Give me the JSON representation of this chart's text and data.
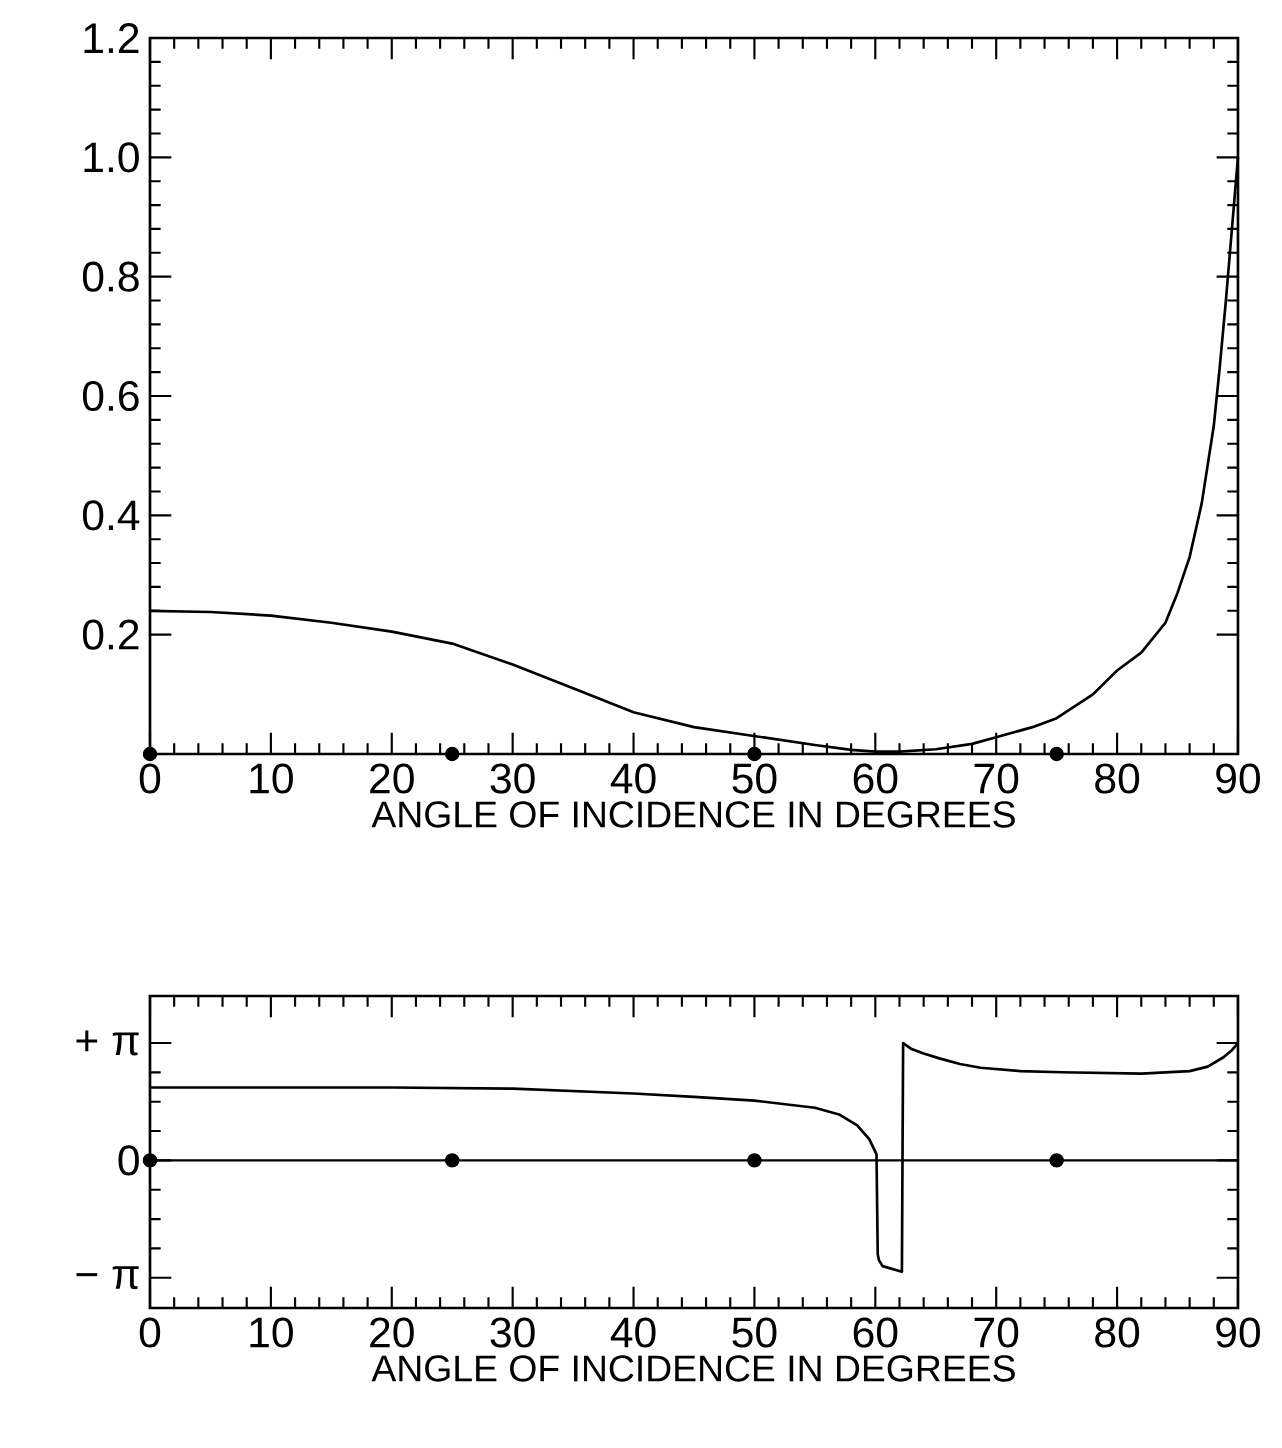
{
  "chart_data": [
    {
      "type": "line",
      "xlabel": "ANGLE OF INCIDENCE IN DEGREES",
      "xlim": [
        0,
        90
      ],
      "xticks": [
        0,
        10,
        20,
        30,
        40,
        50,
        60,
        70,
        80,
        90
      ],
      "ylim": [
        0,
        1.2
      ],
      "yticks": [
        0.2,
        0.4,
        0.6,
        0.8,
        {
          "value": 1.0,
          "label": "1.0"
        },
        1.2
      ],
      "series": [
        {
          "color": "#000000",
          "x": [
            0,
            5,
            10,
            15,
            20,
            25,
            30,
            35,
            40,
            45,
            50,
            55,
            58,
            60,
            62,
            65,
            68,
            70,
            73,
            75,
            78,
            80,
            82,
            84,
            85,
            86,
            87,
            88,
            88.5,
            89,
            89.5,
            90
          ],
          "values": [
            0.24,
            0.238,
            0.232,
            0.22,
            0.205,
            0.185,
            0.15,
            0.11,
            0.07,
            0.045,
            0.03,
            0.015,
            0.007,
            0.004,
            0.004,
            0.008,
            0.017,
            0.028,
            0.045,
            0.06,
            0.1,
            0.14,
            0.17,
            0.22,
            0.27,
            0.33,
            0.42,
            0.55,
            0.65,
            0.76,
            0.88,
            1.0
          ]
        },
        {
          "type": "scatter",
          "marker": "circle",
          "color": "#000000",
          "x": [
            0,
            25,
            50,
            75
          ],
          "values": [
            0,
            0,
            0,
            0
          ]
        }
      ]
    },
    {
      "type": "line",
      "xlabel": "ANGLE OF INCIDENCE IN DEGREES",
      "xlim": [
        0,
        90
      ],
      "xticks": [
        0,
        10,
        20,
        30,
        40,
        50,
        60,
        70,
        80,
        90
      ],
      "ylim": [
        -3.95,
        4.4
      ],
      "yticks": [
        {
          "value": -3.1416,
          "label": "− π"
        },
        0,
        {
          "value": 3.1416,
          "label": "+ π"
        }
      ],
      "ref_lines": [
        {
          "axis": "y",
          "value": 0,
          "color": "#000000"
        }
      ],
      "series": [
        {
          "color": "#000000",
          "x": [
            0,
            10,
            20,
            30,
            40,
            45,
            50,
            55,
            57,
            58.5,
            59.5,
            60.1,
            60.2,
            60.3,
            60.6,
            62.2,
            62.3,
            63,
            64,
            65.3,
            67,
            68.7,
            72,
            75.4,
            82,
            86,
            87.5,
            88.8,
            89.5,
            90
          ],
          "values": [
            1.95,
            1.95,
            1.95,
            1.92,
            1.79,
            1.7,
            1.6,
            1.41,
            1.23,
            0.94,
            0.57,
            0.16,
            -2.51,
            -2.67,
            -2.83,
            -2.98,
            3.14,
            2.98,
            2.86,
            2.73,
            2.58,
            2.48,
            2.39,
            2.36,
            2.32,
            2.39,
            2.51,
            2.76,
            2.95,
            3.14
          ]
        },
        {
          "type": "scatter",
          "marker": "circle",
          "color": "#000000",
          "x": [
            0,
            25,
            50,
            75
          ],
          "values": [
            0,
            0,
            0,
            0
          ]
        }
      ]
    }
  ]
}
